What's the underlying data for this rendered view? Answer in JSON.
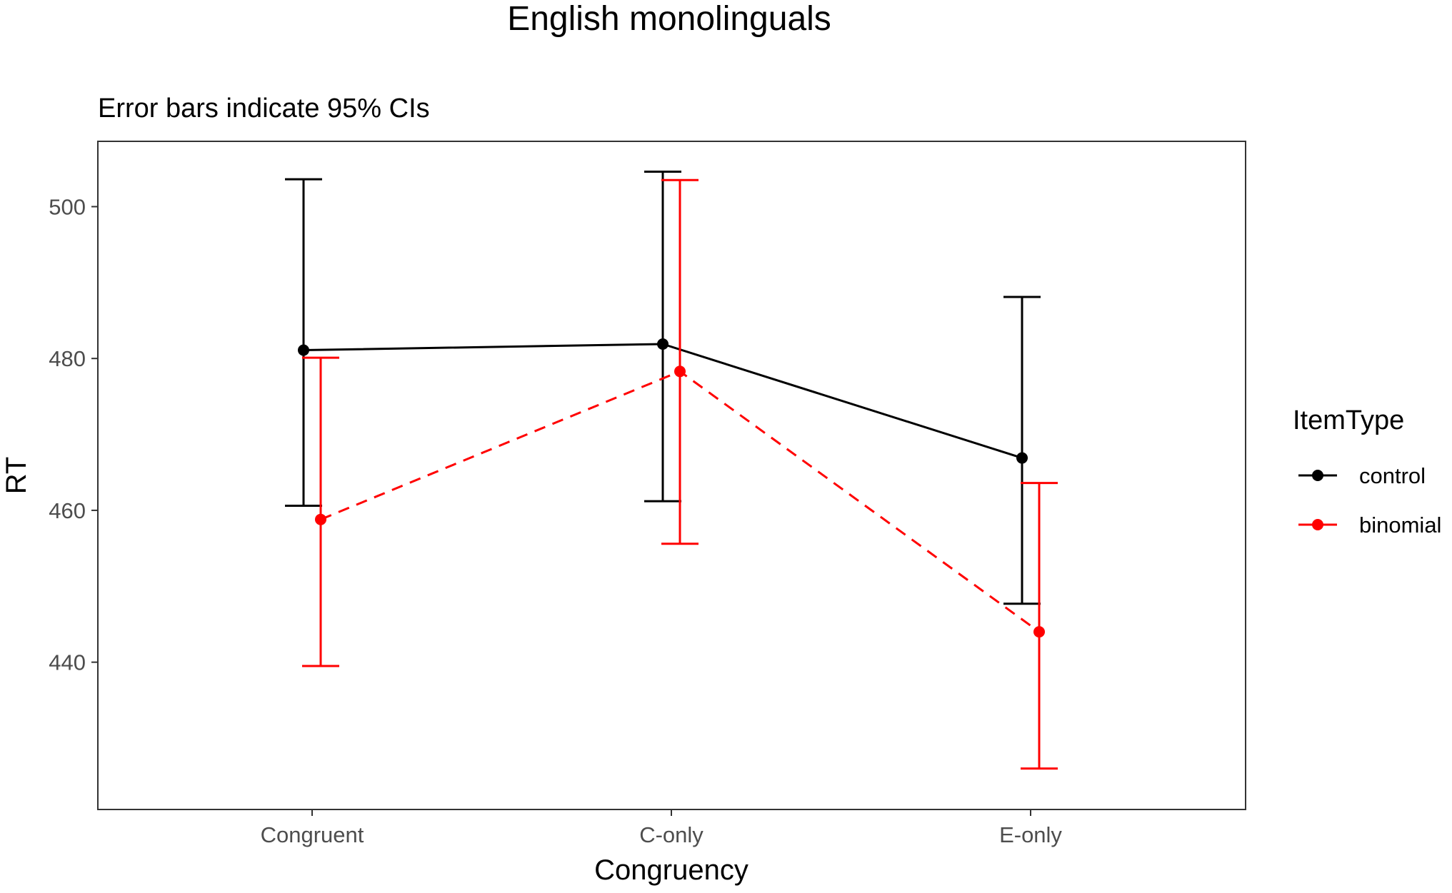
{
  "chart_data": {
    "type": "line",
    "title": "English monolinguals",
    "subtitle": "Error bars indicate 95% CIs",
    "xlabel": "Congruency",
    "ylabel": "RT",
    "categories": [
      "Congruent",
      "C-only",
      "E-only"
    ],
    "ylim": [
      420.6,
      508.6
    ],
    "yticks": [
      440,
      460,
      480,
      500
    ],
    "grid": false,
    "legend": {
      "title": "ItemType",
      "position": "right"
    },
    "series": [
      {
        "name": "control",
        "color": "#000000",
        "line_style": "solid",
        "values": [
          481.1,
          481.9,
          466.9
        ],
        "ci_lower": [
          460.6,
          461.2,
          447.7
        ],
        "ci_upper": [
          503.6,
          504.6,
          488.1
        ]
      },
      {
        "name": "binomial",
        "color": "#ff0000",
        "line_style": "dashed",
        "values": [
          458.8,
          478.3,
          444.0
        ],
        "ci_lower": [
          439.5,
          455.6,
          426.0
        ],
        "ci_upper": [
          480.1,
          503.5,
          463.6
        ]
      }
    ]
  }
}
